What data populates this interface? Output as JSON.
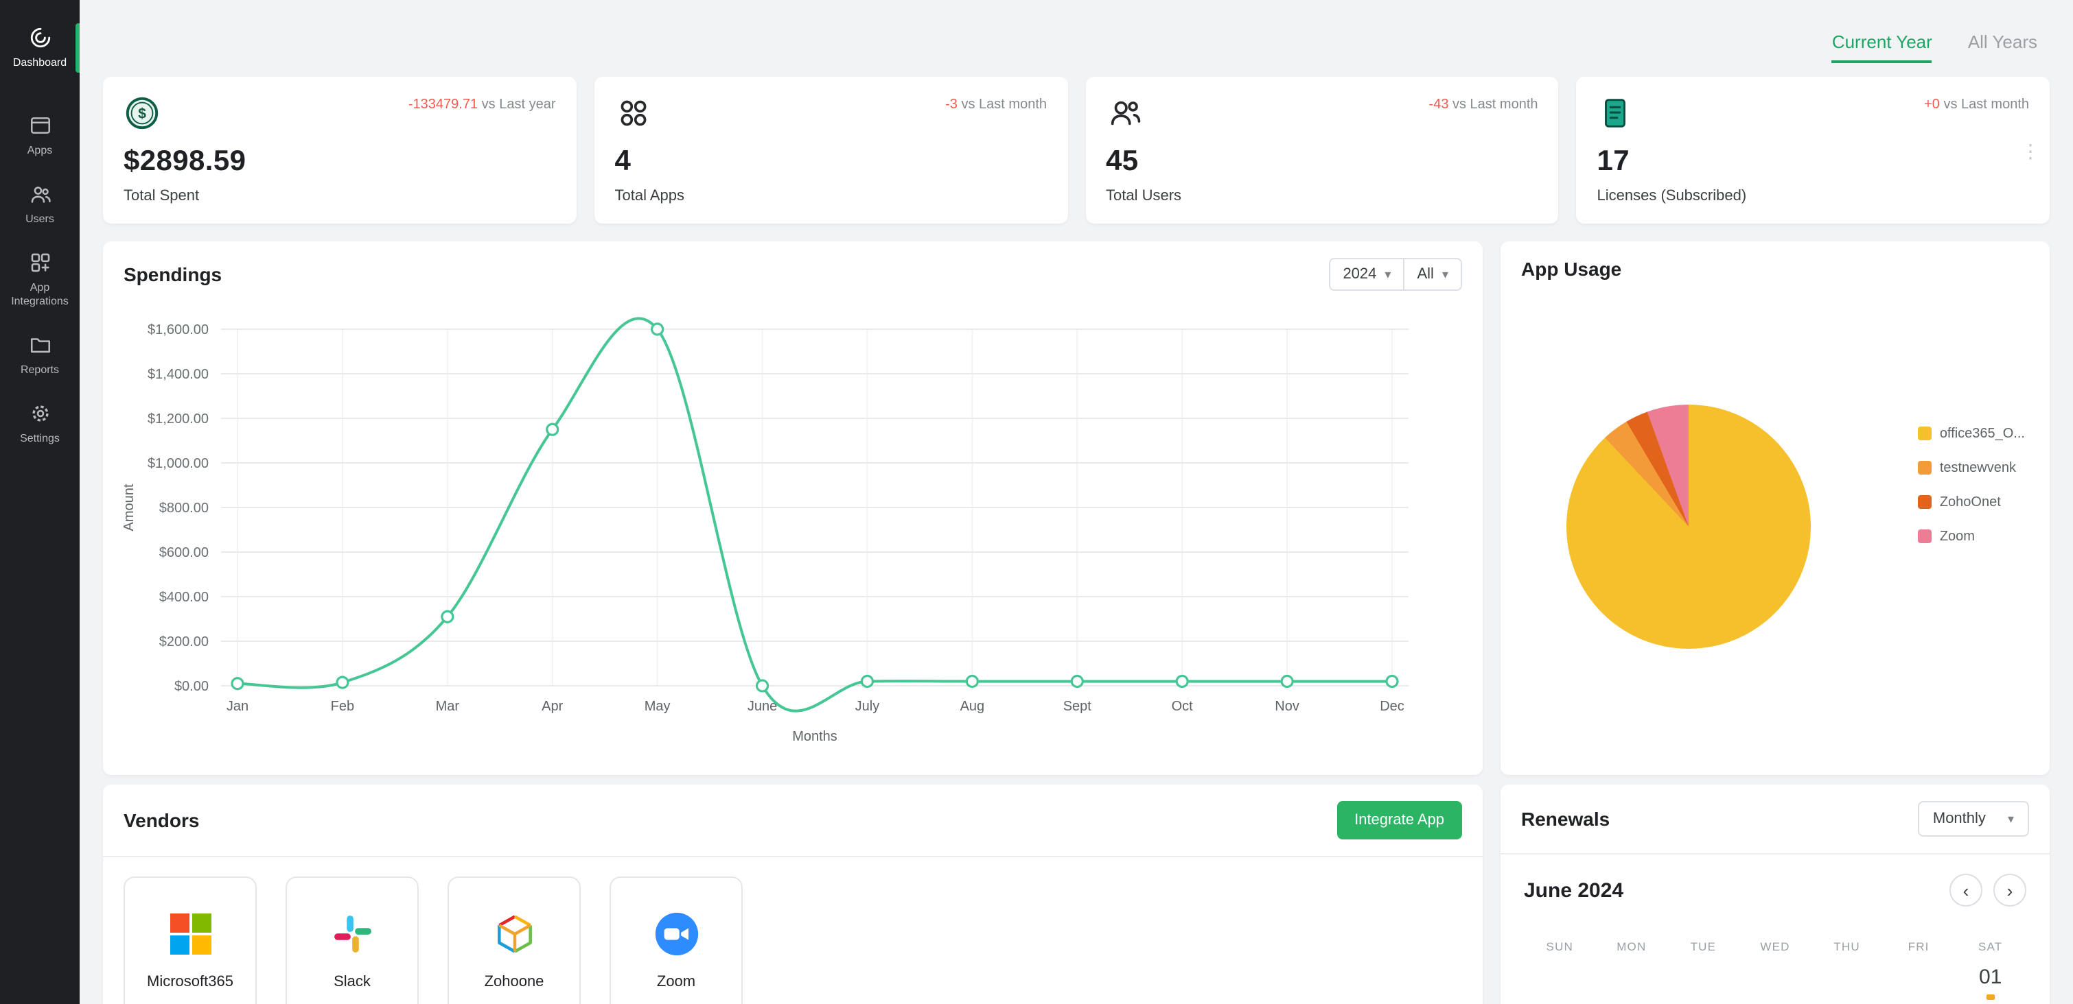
{
  "app": {
    "accent_green": "#1ea565",
    "negative_red": "#ef5a4e",
    "sidebar_bg": "#1f2023"
  },
  "sidebar": {
    "items": [
      {
        "label": "Dashboard",
        "icon": "dashboard-icon",
        "active": true
      },
      {
        "label": "Apps",
        "icon": "apps-icon",
        "active": false
      },
      {
        "label": "Users",
        "icon": "users-icon",
        "active": false
      },
      {
        "label": "App Integrations",
        "icon": "app-integrations-icon",
        "active": false
      },
      {
        "label": "Reports",
        "icon": "reports-icon",
        "active": false
      },
      {
        "label": "Settings",
        "icon": "settings-icon",
        "active": false
      }
    ]
  },
  "header": {
    "tabs": [
      {
        "label": "Current Year",
        "active": true
      },
      {
        "label": "All Years",
        "active": false
      }
    ]
  },
  "stats": [
    {
      "icon": "dollar-coin-icon",
      "delta": "-133479.71",
      "delta_suffix": " vs Last year",
      "delta_color": "#ef5a4e",
      "value": "$2898.59",
      "label": "Total Spent"
    },
    {
      "icon": "apps-grid-icon",
      "delta": "-3",
      "delta_suffix": " vs Last month",
      "delta_color": "#ef5a4e",
      "value": "4",
      "label": "Total Apps"
    },
    {
      "icon": "user-group-icon",
      "delta": "-43",
      "delta_suffix": " vs Last month",
      "delta_color": "#ef5a4e",
      "value": "45",
      "label": "Total Users"
    },
    {
      "icon": "license-doc-icon",
      "delta": "+0",
      "delta_suffix": " vs Last month",
      "delta_color": "#ef5a4e",
      "value": "17",
      "label": "Licenses (Subscribed)"
    }
  ],
  "spendings": {
    "title": "Spendings",
    "year_filter": "2024",
    "app_filter": "All"
  },
  "chart_data": [
    {
      "type": "line",
      "title": "Spendings",
      "x": [
        "Jan",
        "Feb",
        "Mar",
        "Apr",
        "May",
        "June",
        "July",
        "Aug",
        "Sept",
        "Oct",
        "Nov",
        "Dec"
      ],
      "series": [
        {
          "name": "Amount",
          "values": [
            10,
            15,
            310,
            1150,
            1600,
            0,
            20,
            20,
            20,
            20,
            20,
            20
          ]
        }
      ],
      "xlabel": "Months",
      "ylabel": "Amount",
      "ylim": [
        0,
        1600
      ],
      "ytick_step": 200,
      "ytick_labels": [
        "$0.00",
        "$200.00",
        "$400.00",
        "$600.00",
        "$800.00",
        "$1,000.00",
        "$1,200.00",
        "$1,400.00",
        "$1,600.00"
      ],
      "line_color": "#45c694",
      "grid": true,
      "legend": false
    },
    {
      "type": "pie",
      "title": "App Usage",
      "labels": [
        "office365_O...",
        "testnewvenk",
        "ZohoOnet",
        "Zoom"
      ],
      "values": [
        88,
        3.5,
        3,
        5.5
      ],
      "colors": [
        "#f5c02c",
        "#f29b38",
        "#e2641c",
        "#ed7d95"
      ],
      "legend_position": "right"
    }
  ],
  "app_usage": {
    "title": "App Usage",
    "legend": [
      {
        "label": "office365_O...",
        "color": "#f5c02c"
      },
      {
        "label": "testnewvenk",
        "color": "#f29b38"
      },
      {
        "label": "ZohoOnet",
        "color": "#e2641c"
      },
      {
        "label": "Zoom",
        "color": "#ed7d95"
      }
    ]
  },
  "vendors": {
    "title": "Vendors",
    "integrate_button": "Integrate App",
    "items": [
      {
        "name": "Microsoft365",
        "icon": "microsoft-logo-icon"
      },
      {
        "name": "Slack",
        "icon": "slack-logo-icon"
      },
      {
        "name": "Zohoone",
        "icon": "zoho-one-logo-icon"
      },
      {
        "name": "Zoom",
        "icon": "zoom-logo-icon"
      }
    ],
    "logo_colors": {
      "microsoft": [
        "#f25022",
        "#7fba00",
        "#00a4ef",
        "#ffb900"
      ],
      "slack": [
        "#36c5f0",
        "#2eb67d",
        "#ecb22e",
        "#e01e5a"
      ],
      "zoom": "#2d8cff"
    }
  },
  "renewals": {
    "title": "Renewals",
    "filter": "Monthly",
    "month_label": "June 2024",
    "weekdays": [
      "SUN",
      "MON",
      "TUE",
      "WED",
      "THU",
      "FRI",
      "SAT"
    ],
    "first_visible_day": "01"
  }
}
